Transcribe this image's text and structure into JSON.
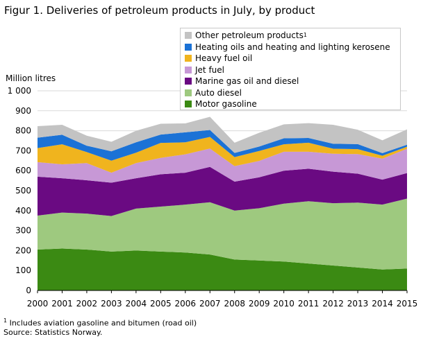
{
  "title": "Figur 1. Deliveries of petroleum products in July, by product",
  "footnote_marker": "1",
  "footnote_text": " Includes aviation gasoline and bitumen (road oil)",
  "source": "Source: Statistics Norway.",
  "chart_data": {
    "type": "area",
    "stacked": true,
    "title": "Figur 1. Deliveries of petroleum products in July, by product",
    "ylabel": "Million litres",
    "xlabel": "",
    "ylim": [
      0,
      1000
    ],
    "yticks": [
      0,
      100,
      200,
      300,
      400,
      500,
      600,
      700,
      800,
      900,
      1000
    ],
    "ytick_labels": [
      "0",
      "100",
      "200",
      "300",
      "400",
      "500",
      "600",
      "700",
      "800",
      "900",
      "1 000"
    ],
    "x": [
      "2000",
      "2001",
      "2002",
      "2003",
      "2004",
      "2005",
      "2006",
      "2007",
      "2008",
      "2009",
      "2010",
      "2011",
      "2012",
      "2013",
      "2014",
      "2015"
    ],
    "legend_position": "top-right",
    "grid": true,
    "series": [
      {
        "name": "Motor gasoline",
        "color": "#3b8a13",
        "values": [
          205,
          210,
          205,
          195,
          200,
          195,
          190,
          180,
          155,
          150,
          145,
          135,
          125,
          115,
          105,
          110
        ]
      },
      {
        "name": "Auto diesel",
        "color": "#9ec97f",
        "values": [
          170,
          180,
          180,
          178,
          210,
          225,
          240,
          262,
          245,
          262,
          290,
          312,
          312,
          325,
          325,
          350
        ]
      },
      {
        "name": "Marine gas oil and diesel",
        "color": "#6a0a82",
        "values": [
          195,
          172,
          167,
          167,
          152,
          162,
          160,
          177,
          145,
          155,
          165,
          163,
          158,
          145,
          125,
          128
        ]
      },
      {
        "name": "Jet fuel",
        "color": "#c798d6",
        "values": [
          73,
          70,
          86,
          50,
          76,
          82,
          92,
          92,
          78,
          82,
          95,
          85,
          90,
          98,
          105,
          122
        ]
      },
      {
        "name": "Heavy fuel oil",
        "color": "#f0b41e",
        "values": [
          70,
          100,
          55,
          60,
          52,
          75,
          60,
          58,
          45,
          50,
          37,
          45,
          25,
          25,
          15,
          10
        ]
      },
      {
        "name": "Heating oils and heating and lighting kerosene",
        "color": "#1b72d6",
        "values": [
          52,
          48,
          32,
          47,
          52,
          42,
          50,
          35,
          21,
          22,
          30,
          24,
          25,
          25,
          13,
          10
        ]
      },
      {
        "name": "Other petroleum products",
        "name_sup": "1",
        "color": "#c3c3c3",
        "values": [
          58,
          50,
          50,
          48,
          58,
          54,
          45,
          66,
          51,
          69,
          70,
          74,
          95,
          72,
          64,
          77
        ]
      }
    ]
  }
}
